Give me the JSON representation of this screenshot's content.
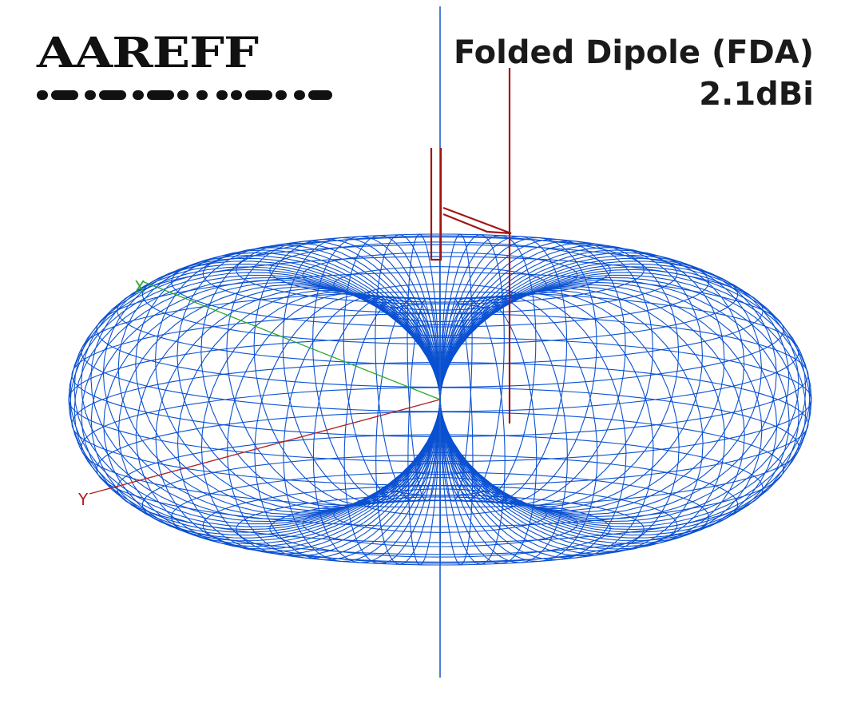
{
  "logo": {
    "text": "AAREFF"
  },
  "title": {
    "line1": "Folded Dipole (FDA)",
    "line2": "2.1dBi"
  },
  "axes": {
    "x_label": "X",
    "y_label": "Y"
  },
  "colors": {
    "pattern": "#0a50d2",
    "z_axis": "#1f5fc9",
    "element": "#a01616",
    "x_axis": "#2aa82a",
    "y_axis": "#b02020",
    "text": "#1a1a1a"
  }
}
